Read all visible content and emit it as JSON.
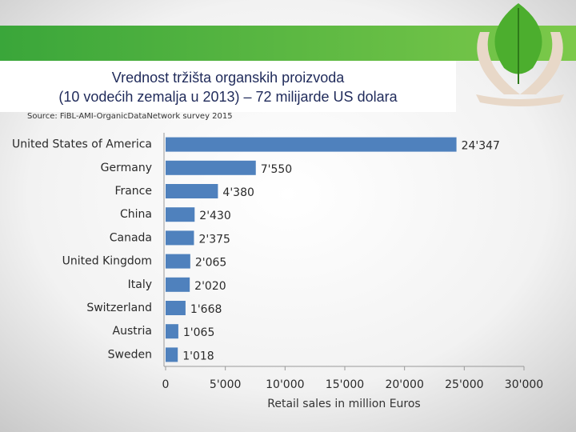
{
  "chart_data": {
    "type": "barh",
    "title": [
      "Vrednost tržišta organskih proizvoda",
      "(10 vodećih zemalja u 2013) – 72 milijarde US dolara"
    ],
    "source": "Source: FiBL-AMI-OrganicDataNetwork survey 2015",
    "x_label": "Retail sales in million Euros",
    "categories": [
      "United States of America",
      "Germany",
      "France",
      "China",
      "Canada",
      "United Kingdom",
      "Italy",
      "Switzerland",
      "Austria",
      "Sweden"
    ],
    "values": [
      24347,
      7550,
      4380,
      2430,
      2375,
      2065,
      2020,
      1668,
      1065,
      1018
    ],
    "value_labels": [
      "24'347",
      "7'550",
      "4'380",
      "2'430",
      "2'375",
      "2'065",
      "2'020",
      "1'668",
      "1'065",
      "1'018"
    ],
    "color": "#4f81bd",
    "xlim": [
      0,
      30000
    ],
    "xticks": [
      0,
      {
        "value": 5000,
        "label": "5'000"
      },
      {
        "value": 10000,
        "label": "10'000"
      },
      {
        "value": 15000,
        "label": "15'000"
      },
      {
        "value": 20000,
        "label": "20'000"
      },
      {
        "value": 25000,
        "label": "25'000"
      },
      {
        "value": 30000,
        "label": "30'000"
      }
    ],
    "grid": false
  }
}
